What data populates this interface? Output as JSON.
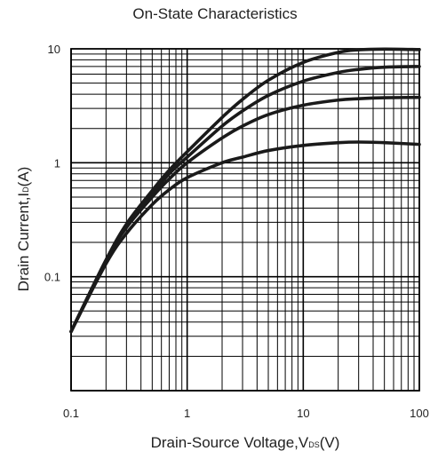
{
  "chart_data": {
    "type": "line",
    "title": "On-State Characteristics",
    "xlabel_pre": "Drain-Source Voltage,V",
    "xlabel_sub": "DS",
    "xlabel_post": "(V)",
    "ylabel_pre": "Drain Current,I",
    "ylabel_sub": "D",
    "ylabel_post": "(A)",
    "x_scale": "log",
    "y_scale": "log",
    "xlim": [
      0.1,
      100
    ],
    "ylim": [
      0.01,
      10
    ],
    "x_ticks": [
      {
        "value": 0.1,
        "label": "0.1"
      },
      {
        "value": 1,
        "label": "1"
      },
      {
        "value": 10,
        "label": "10"
      },
      {
        "value": 100,
        "label": "100"
      }
    ],
    "y_ticks": [
      {
        "value": 0.1,
        "label": "0.1"
      },
      {
        "value": 1,
        "label": "1"
      },
      {
        "value": 10,
        "label": "10"
      }
    ],
    "grid": true,
    "series": [
      {
        "x": [
          0.1,
          0.2,
          0.3,
          0.5,
          0.7,
          1,
          2,
          3,
          5,
          10,
          20,
          30,
          50,
          100
        ],
        "y": [
          0.033,
          0.13,
          0.24,
          0.43,
          0.58,
          0.74,
          1.0,
          1.12,
          1.28,
          1.42,
          1.5,
          1.52,
          1.5,
          1.45
        ]
      },
      {
        "x": [
          0.1,
          0.2,
          0.3,
          0.5,
          0.7,
          1,
          2,
          3,
          5,
          10,
          20,
          30,
          50,
          100
        ],
        "y": [
          0.033,
          0.14,
          0.27,
          0.5,
          0.72,
          1.0,
          1.65,
          2.1,
          2.65,
          3.2,
          3.55,
          3.65,
          3.72,
          3.75
        ]
      },
      {
        "x": [
          0.1,
          0.2,
          0.3,
          0.5,
          0.7,
          1,
          2,
          3,
          5,
          10,
          20,
          30,
          50,
          100
        ],
        "y": [
          0.033,
          0.14,
          0.28,
          0.53,
          0.8,
          1.12,
          2.1,
          2.85,
          3.9,
          5.2,
          6.2,
          6.6,
          6.9,
          7.0
        ]
      },
      {
        "x": [
          0.1,
          0.2,
          0.3,
          0.5,
          0.7,
          1,
          2,
          3,
          5,
          10,
          20,
          30,
          50,
          100
        ],
        "y": [
          0.033,
          0.14,
          0.29,
          0.57,
          0.86,
          1.25,
          2.5,
          3.6,
          5.3,
          7.6,
          9.3,
          9.8,
          9.95,
          9.85
        ]
      }
    ]
  }
}
